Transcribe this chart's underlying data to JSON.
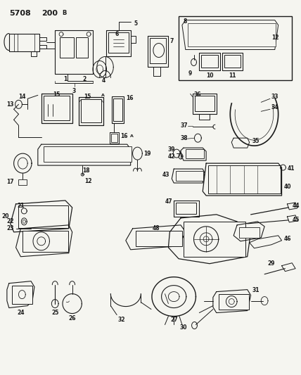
{
  "background_color": "#f5f5f0",
  "line_color": "#1a1a1a",
  "figsize": [
    4.28,
    5.33
  ],
  "dpi": 100,
  "header1": "5708",
  "header2": "200",
  "header2b": "B"
}
